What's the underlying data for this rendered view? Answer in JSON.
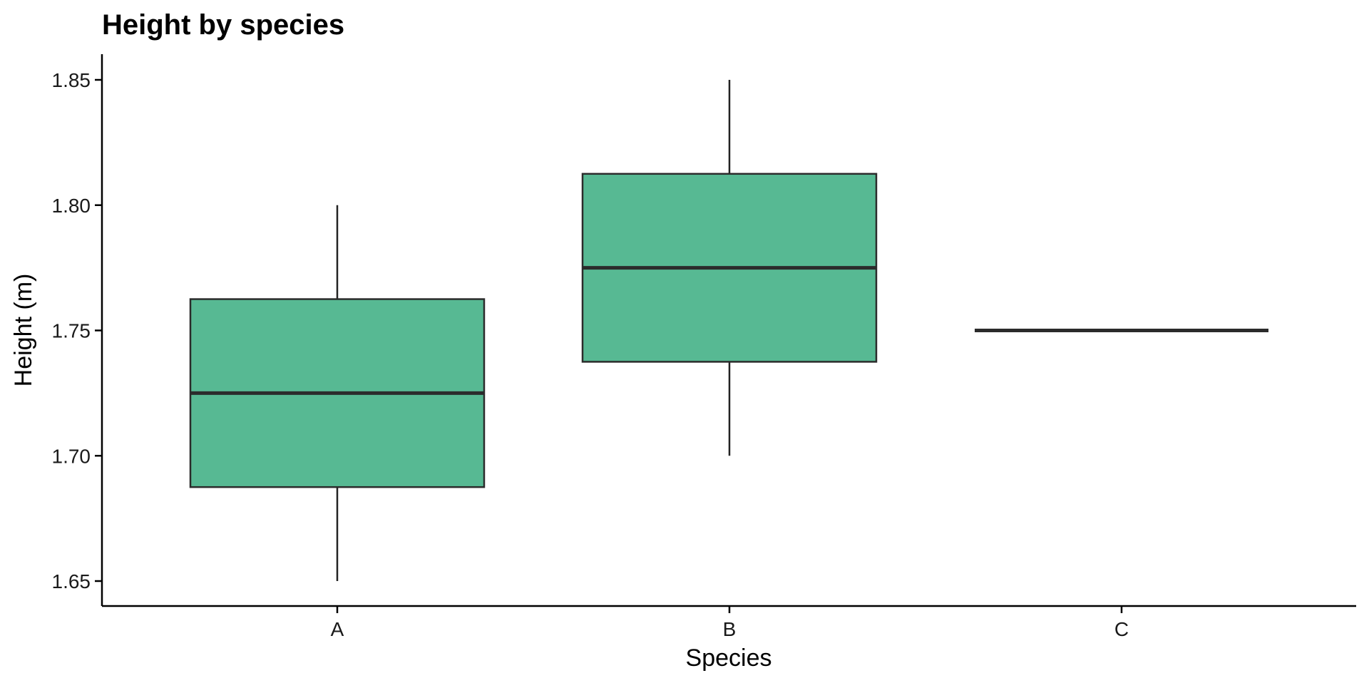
{
  "chart_data": {
    "type": "box",
    "title": "Height by species",
    "xlabel": "Species",
    "ylabel": "Height (m)",
    "categories": [
      "A",
      "B",
      "C"
    ],
    "boxes": [
      {
        "category": "A",
        "min": 1.65,
        "q1": 1.6875,
        "median": 1.725,
        "q3": 1.7625,
        "max": 1.8
      },
      {
        "category": "B",
        "min": 1.7,
        "q1": 1.7375,
        "median": 1.775,
        "q3": 1.8125,
        "max": 1.85
      },
      {
        "category": "C",
        "min": 1.75,
        "q1": 1.75,
        "median": 1.75,
        "q3": 1.75,
        "max": 1.75
      }
    ],
    "ylim": [
      1.64,
      1.86
    ],
    "yticks": [
      1.65,
      1.7,
      1.75,
      1.8,
      1.85
    ],
    "ytick_labels": [
      "1.65",
      "1.70",
      "1.75",
      "1.80",
      "1.85"
    ],
    "grid": false,
    "colors": {
      "box_fill": "#57b993",
      "box_stroke": "#2b2b2b",
      "axis": "#000000"
    }
  }
}
